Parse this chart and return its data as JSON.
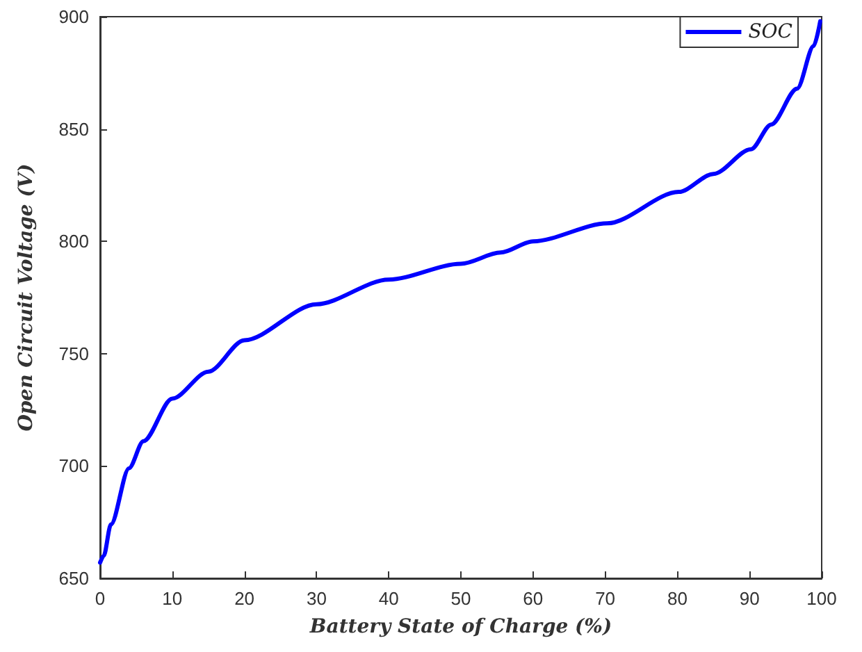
{
  "chart_data": {
    "type": "line",
    "xlabel": "Battery State of Charge (%)",
    "ylabel": "Open Circuit Voltage (V)",
    "xlim": [
      0,
      100
    ],
    "xticks": [
      0,
      10,
      20,
      30,
      40,
      50,
      60,
      70,
      80,
      90,
      100
    ],
    "ylim": [
      650,
      900
    ],
    "yticks": [
      650,
      700,
      750,
      800,
      850,
      900
    ],
    "grid": false,
    "legend": "top right",
    "series": [
      {
        "name": "SOC",
        "color": "#0000ff",
        "x": [
          0,
          0.5,
          1.5,
          4,
          6,
          10,
          15,
          20,
          30,
          40,
          50,
          55.5,
          60,
          70.3,
          80.2,
          85,
          90.2,
          93,
          96.6,
          98.9,
          99.8
        ],
        "values": [
          657,
          660,
          674,
          699,
          711,
          730,
          742,
          756,
          772,
          783,
          790,
          795,
          800,
          808,
          822,
          830,
          841,
          852,
          868,
          887,
          898
        ]
      }
    ]
  }
}
